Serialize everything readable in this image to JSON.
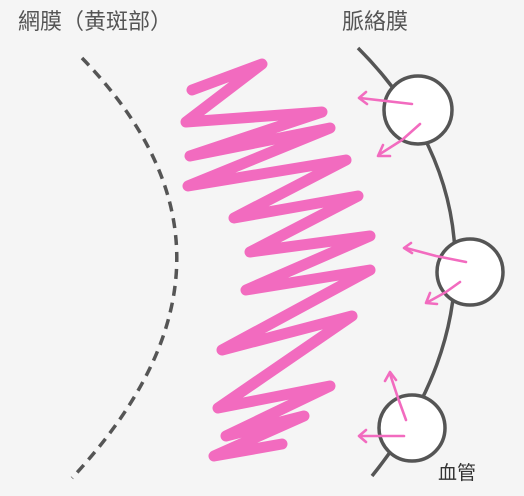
{
  "labels": {
    "retina": "網膜（黄斑部）",
    "choroid": "脈絡膜",
    "vessel": "血管"
  },
  "colors": {
    "background": "#f5f5f5",
    "outline": "#555555",
    "accent": "#f26bbf",
    "vessel_fill": "#ffffff"
  }
}
